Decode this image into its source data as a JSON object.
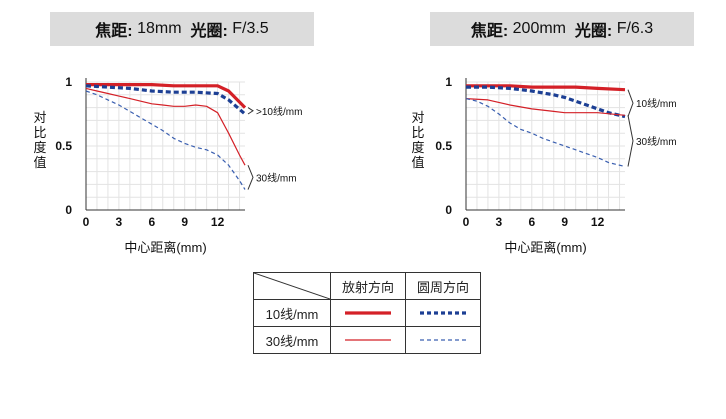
{
  "chart_data": [
    {
      "type": "line",
      "title": {
        "focal_label": "焦距:",
        "focal_value": "18mm",
        "aperture_label": "光圈:",
        "aperture_value": "F/3.5"
      },
      "ylabel": "对比度值",
      "xlabel": "中心距离(mm)",
      "xlim": [
        0,
        14.5
      ],
      "ylim": [
        0,
        1
      ],
      "xticks": [
        0,
        3,
        6,
        9,
        12
      ],
      "yticks": [
        {
          "value": 0,
          "label": "0"
        },
        {
          "value": 0.5,
          "label": "0.5"
        },
        {
          "value": 1,
          "label": "1"
        }
      ],
      "grid": true,
      "annotations": [
        {
          "label": ">10线/mm",
          "group": "10"
        },
        {
          "label": "30线/mm",
          "group": "30"
        }
      ],
      "series": [
        {
          "key": "s10",
          "color": "#d42027",
          "style": "solid",
          "width": 3.2,
          "x": [
            0,
            2,
            4,
            6,
            8,
            10,
            12,
            13,
            14.5
          ],
          "y": [
            0.98,
            0.98,
            0.98,
            0.98,
            0.97,
            0.97,
            0.97,
            0.93,
            0.8
          ]
        },
        {
          "key": "m10",
          "color": "#1c3f94",
          "style": "dashed",
          "width": 3.2,
          "x": [
            0,
            2,
            4,
            6,
            8,
            10,
            12,
            13,
            14.5
          ],
          "y": [
            0.97,
            0.96,
            0.95,
            0.93,
            0.92,
            0.92,
            0.91,
            0.86,
            0.75
          ]
        },
        {
          "key": "s30",
          "color": "#d42027",
          "style": "solid",
          "width": 1.2,
          "x": [
            0,
            1,
            2,
            3,
            4,
            5,
            6,
            7,
            8,
            9,
            10,
            11,
            12,
            13,
            14,
            14.5
          ],
          "y": [
            0.95,
            0.93,
            0.91,
            0.89,
            0.87,
            0.85,
            0.83,
            0.82,
            0.81,
            0.81,
            0.82,
            0.81,
            0.76,
            0.6,
            0.43,
            0.35
          ]
        },
        {
          "key": "m30",
          "color": "#3a5fb0",
          "style": "fine-dashed",
          "width": 1.2,
          "x": [
            0,
            1,
            2,
            3,
            4,
            5,
            6,
            7,
            8,
            9,
            10,
            11,
            12,
            13,
            14,
            14.5
          ],
          "y": [
            0.93,
            0.9,
            0.86,
            0.82,
            0.77,
            0.72,
            0.67,
            0.62,
            0.56,
            0.52,
            0.49,
            0.47,
            0.43,
            0.35,
            0.23,
            0.16
          ]
        }
      ]
    },
    {
      "type": "line",
      "title": {
        "focal_label": "焦距:",
        "focal_value": "200mm",
        "aperture_label": "光圈:",
        "aperture_value": "F/6.3"
      },
      "ylabel": "对比度值",
      "xlabel": "中心距离(mm)",
      "xlim": [
        0,
        14.5
      ],
      "ylim": [
        0,
        1
      ],
      "xticks": [
        0,
        3,
        6,
        9,
        12
      ],
      "yticks": [
        {
          "value": 0,
          "label": "0"
        },
        {
          "value": 0.5,
          "label": "0.5"
        },
        {
          "value": 1,
          "label": "1"
        }
      ],
      "grid": true,
      "annotations": [
        {
          "label": "10线/mm",
          "group": "10"
        },
        {
          "label": "30线/mm",
          "group": "30"
        }
      ],
      "series": [
        {
          "key": "s10",
          "color": "#d42027",
          "style": "solid",
          "width": 3.2,
          "x": [
            0,
            2,
            4,
            6,
            8,
            10,
            12,
            14.5
          ],
          "y": [
            0.97,
            0.97,
            0.97,
            0.96,
            0.96,
            0.96,
            0.95,
            0.94
          ]
        },
        {
          "key": "m10",
          "color": "#1c3f94",
          "style": "dashed",
          "width": 3.2,
          "x": [
            0,
            2,
            4,
            6,
            8,
            9,
            10,
            11,
            12,
            13,
            14.5
          ],
          "y": [
            0.96,
            0.96,
            0.95,
            0.93,
            0.9,
            0.88,
            0.85,
            0.82,
            0.79,
            0.76,
            0.73
          ]
        },
        {
          "key": "s30",
          "color": "#d42027",
          "style": "solid",
          "width": 1.2,
          "x": [
            0,
            2,
            4,
            6,
            8,
            9,
            10,
            12,
            14.5
          ],
          "y": [
            0.87,
            0.86,
            0.82,
            0.79,
            0.77,
            0.76,
            0.76,
            0.76,
            0.74
          ]
        },
        {
          "key": "m30",
          "color": "#3a5fb0",
          "style": "fine-dashed",
          "width": 1.2,
          "x": [
            0,
            1,
            2,
            3,
            4,
            5,
            6,
            7,
            8,
            9,
            10,
            11,
            12,
            13,
            14.5
          ],
          "y": [
            0.87,
            0.85,
            0.81,
            0.75,
            0.68,
            0.63,
            0.6,
            0.56,
            0.53,
            0.5,
            0.47,
            0.44,
            0.41,
            0.37,
            0.34
          ]
        }
      ]
    }
  ],
  "legend_table": {
    "headers": [
      "放射方向",
      "圆周方向"
    ],
    "rows": [
      {
        "label": "10线/mm",
        "radial": {
          "color": "#d42027",
          "style": "solid-thick"
        },
        "tangential": {
          "color": "#1c3f94",
          "style": "dotted-thick"
        }
      },
      {
        "label": "30线/mm",
        "radial": {
          "color": "#d42027",
          "style": "solid-thin"
        },
        "tangential": {
          "color": "#3a5fb0",
          "style": "dashed-thin"
        }
      }
    ]
  }
}
